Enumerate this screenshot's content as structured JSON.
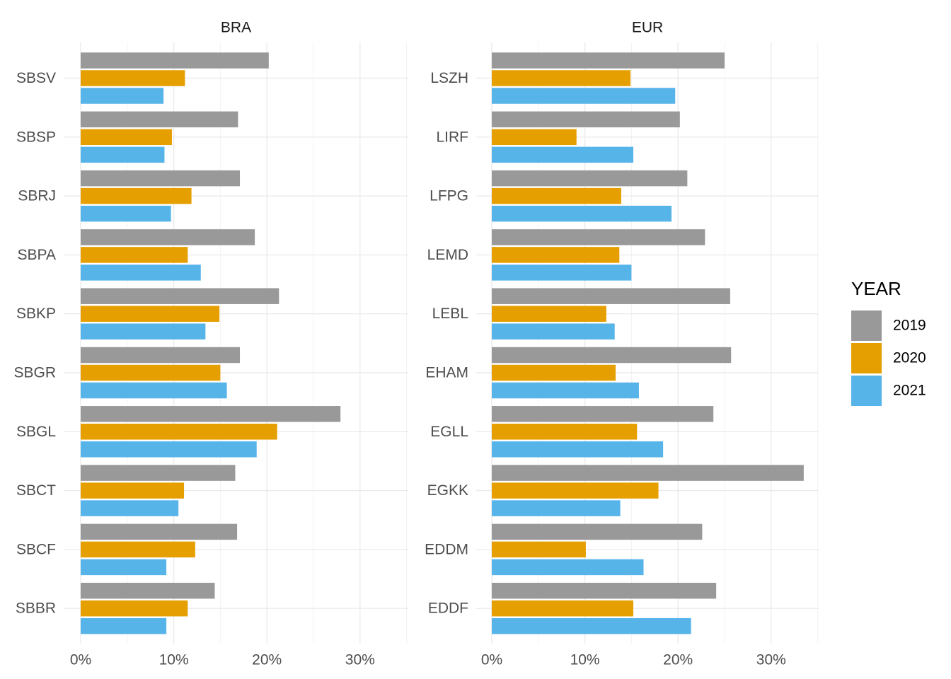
{
  "chart_data": {
    "type": "bar",
    "orientation": "horizontal",
    "facet_orientation": "columns",
    "x_ticks": [
      "0%",
      "10%",
      "20%",
      "30%"
    ],
    "x_tick_values": [
      0,
      10,
      20,
      30
    ],
    "xlim": [
      0,
      35
    ],
    "grid": true,
    "legend": {
      "title": "YEAR",
      "position": "right",
      "entries": [
        {
          "name": "2019",
          "color": "#999999"
        },
        {
          "name": "2020",
          "color": "#E69F00"
        },
        {
          "name": "2021",
          "color": "#56B4E9"
        }
      ]
    },
    "panels": [
      {
        "title": "BRA",
        "categories": [
          "SBSV",
          "SBSP",
          "SBRJ",
          "SBPA",
          "SBKP",
          "SBGR",
          "SBGL",
          "SBCT",
          "SBCF",
          "SBBR"
        ],
        "series": [
          {
            "name": "2019",
            "values": [
              20.2,
              16.9,
              17.1,
              18.7,
              21.3,
              17.1,
              27.9,
              16.6,
              16.8,
              14.4
            ]
          },
          {
            "name": "2020",
            "values": [
              11.2,
              9.8,
              11.9,
              11.5,
              14.9,
              15.0,
              21.1,
              11.1,
              12.3,
              11.5
            ]
          },
          {
            "name": "2021",
            "values": [
              8.9,
              9.0,
              9.7,
              12.9,
              13.4,
              15.7,
              18.9,
              10.5,
              9.2,
              9.2
            ]
          }
        ]
      },
      {
        "title": "EUR",
        "categories": [
          "LSZH",
          "LIRF",
          "LFPG",
          "LEMD",
          "LEBL",
          "EHAM",
          "EGLL",
          "EGKK",
          "EDDM",
          "EDDF"
        ],
        "series": [
          {
            "name": "2019",
            "values": [
              25.0,
              20.2,
              21.0,
              22.9,
              25.6,
              25.7,
              23.8,
              33.5,
              22.6,
              24.1
            ]
          },
          {
            "name": "2020",
            "values": [
              14.9,
              9.1,
              13.9,
              13.7,
              12.3,
              13.3,
              15.6,
              17.9,
              10.1,
              15.2
            ]
          },
          {
            "name": "2021",
            "values": [
              19.7,
              15.2,
              19.3,
              15.0,
              13.2,
              15.8,
              18.4,
              13.8,
              16.3,
              21.4
            ]
          }
        ]
      }
    ]
  }
}
